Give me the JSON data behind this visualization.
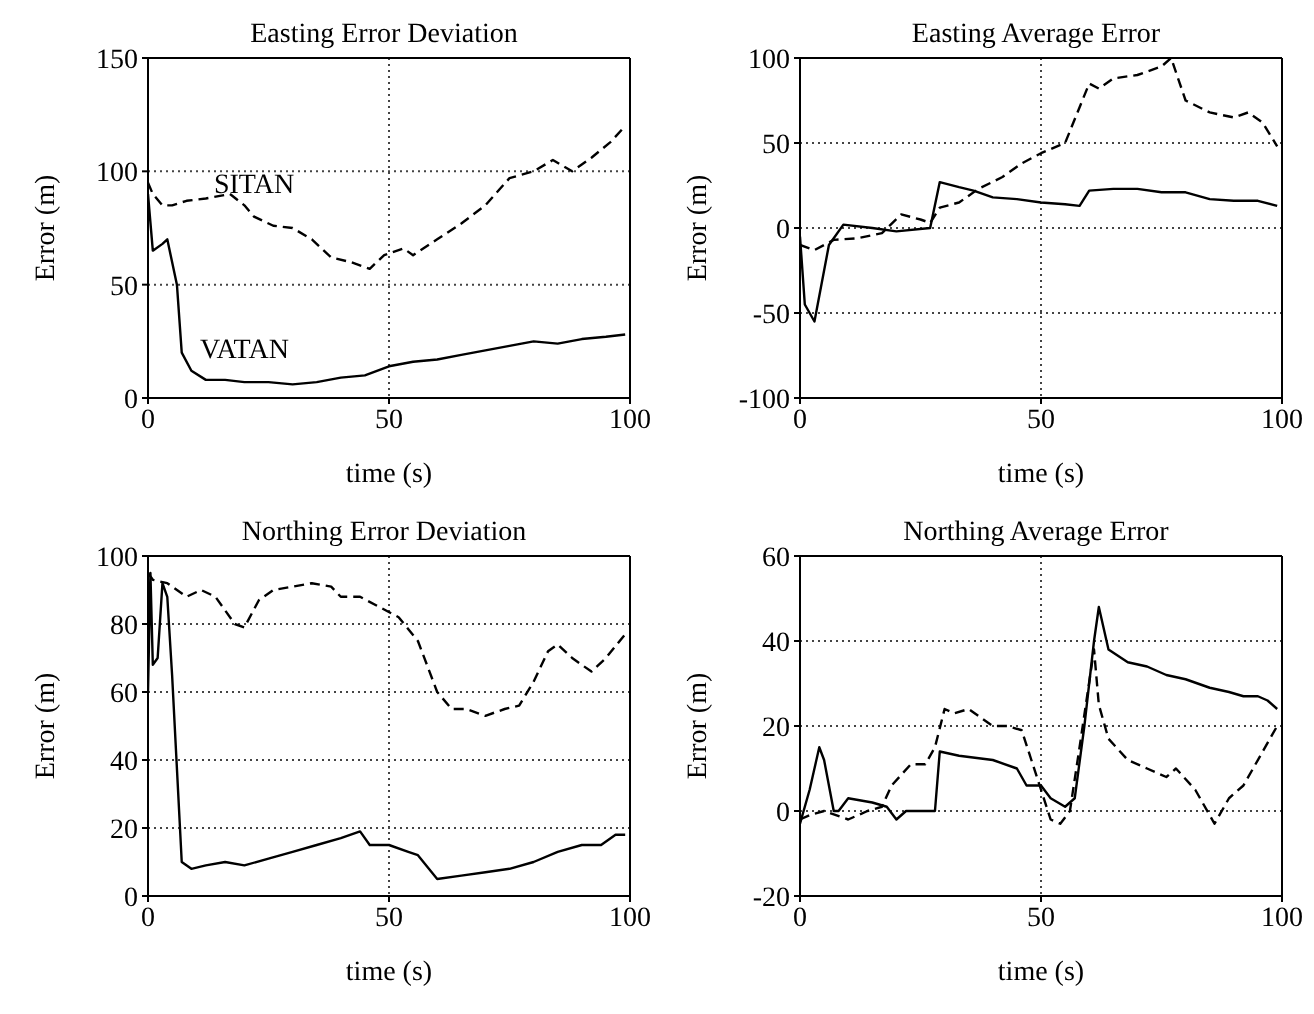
{
  "chart_data": [
    {
      "type": "line",
      "title": "Easting Error Deviation",
      "xlabel": "time (s)",
      "ylabel": "Error (m)",
      "xlim": [
        0,
        100
      ],
      "xticks": [
        0,
        50,
        100
      ],
      "ylim": [
        0,
        150
      ],
      "yticks": [
        0,
        50,
        100,
        150
      ],
      "grid": true,
      "legend": false,
      "marker": "none",
      "series": [
        {
          "name": "SITAN",
          "color": "#000000",
          "line_style": "dashed",
          "x": [
            0,
            1,
            3,
            5,
            8,
            12,
            17,
            20,
            22,
            26,
            30,
            34,
            38,
            42,
            46,
            49,
            53,
            55,
            60,
            65,
            70,
            75,
            80,
            84,
            88,
            92,
            96,
            99
          ],
          "values": [
            95,
            90,
            85,
            85,
            87,
            88,
            90,
            85,
            80,
            76,
            75,
            70,
            62,
            60,
            57,
            63,
            66,
            63,
            70,
            77,
            85,
            97,
            100,
            105,
            100,
            106,
            113,
            120
          ]
        },
        {
          "name": "VATAN",
          "color": "#000000",
          "line_style": "solid",
          "x": [
            0,
            1,
            3,
            4,
            6,
            7,
            9,
            12,
            16,
            20,
            25,
            30,
            35,
            40,
            45,
            50,
            55,
            60,
            65,
            70,
            75,
            80,
            85,
            90,
            95,
            99
          ],
          "values": [
            90,
            65,
            68,
            70,
            50,
            20,
            12,
            8,
            8,
            7,
            7,
            6,
            7,
            9,
            10,
            14,
            16,
            17,
            19,
            21,
            23,
            25,
            24,
            26,
            27,
            28
          ]
        }
      ]
    },
    {
      "type": "line",
      "title": "Easting Average Error",
      "xlabel": "time (s)",
      "ylabel": "Error (m)",
      "xlim": [
        0,
        100
      ],
      "xticks": [
        0,
        50,
        100
      ],
      "ylim": [
        -100,
        100
      ],
      "yticks": [
        -100,
        -50,
        0,
        50,
        100
      ],
      "grid": true,
      "legend": false,
      "marker": "none",
      "series": [
        {
          "color": "#000000",
          "line_style": "dashed",
          "x": [
            0,
            3,
            7,
            12,
            17,
            21,
            25,
            27,
            29,
            33,
            37,
            42,
            46,
            50,
            55,
            60,
            62,
            65,
            70,
            75,
            77,
            80,
            85,
            90,
            93,
            96,
            99
          ],
          "values": [
            -10,
            -13,
            -7,
            -6,
            -3,
            8,
            5,
            3,
            12,
            15,
            23,
            30,
            38,
            44,
            50,
            85,
            82,
            88,
            90,
            95,
            100,
            75,
            68,
            65,
            68,
            62,
            48
          ]
        },
        {
          "color": "#000000",
          "line_style": "solid",
          "x": [
            0,
            1,
            3,
            6,
            9,
            15,
            20,
            27,
            29,
            33,
            36,
            40,
            45,
            50,
            55,
            58,
            60,
            65,
            70,
            75,
            80,
            85,
            90,
            95,
            99
          ],
          "values": [
            -5,
            -45,
            -55,
            -10,
            2,
            0,
            -2,
            0,
            27,
            24,
            22,
            18,
            17,
            15,
            14,
            13,
            22,
            23,
            23,
            21,
            21,
            17,
            16,
            16,
            13
          ]
        }
      ]
    },
    {
      "type": "line",
      "title": "Northing Error Deviation",
      "xlabel": "time (s)",
      "ylabel": "Error (m)",
      "xlim": [
        0,
        100
      ],
      "xticks": [
        0,
        50,
        100
      ],
      "ylim": [
        0,
        100
      ],
      "yticks": [
        0,
        20,
        40,
        60,
        80,
        100
      ],
      "grid": true,
      "legend": false,
      "marker": "none",
      "series": [
        {
          "color": "#000000",
          "line_style": "dashed",
          "x": [
            0,
            1,
            4,
            8,
            11,
            14,
            18,
            20,
            23,
            26,
            30,
            34,
            38,
            40,
            44,
            48,
            52,
            56,
            60,
            63,
            66,
            70,
            74,
            77,
            80,
            83,
            85,
            88,
            92,
            95,
            99
          ],
          "values": [
            95,
            93,
            92,
            88,
            90,
            88,
            80,
            79,
            87,
            90,
            91,
            92,
            91,
            88,
            88,
            85,
            82,
            75,
            60,
            55,
            55,
            53,
            55,
            56,
            63,
            72,
            74,
            70,
            66,
            70,
            77
          ]
        },
        {
          "color": "#000000",
          "line_style": "solid",
          "x": [
            0,
            0.5,
            1,
            2,
            3,
            4,
            5,
            7,
            9,
            12,
            16,
            20,
            25,
            30,
            35,
            40,
            44,
            46,
            50,
            54,
            56,
            60,
            65,
            70,
            75,
            80,
            85,
            90,
            94,
            97,
            99
          ],
          "values": [
            60,
            95,
            68,
            70,
            92,
            88,
            65,
            10,
            8,
            9,
            10,
            9,
            11,
            13,
            15,
            17,
            19,
            15,
            15,
            13,
            12,
            5,
            6,
            7,
            8,
            10,
            13,
            15,
            15,
            18,
            18
          ]
        }
      ]
    },
    {
      "type": "line",
      "title": "Northing Average Error",
      "xlabel": "time (s)",
      "ylabel": "Error (m)",
      "xlim": [
        0,
        100
      ],
      "xticks": [
        0,
        50,
        100
      ],
      "ylim": [
        -20,
        60
      ],
      "yticks": [
        -20,
        0,
        20,
        40,
        60
      ],
      "grid": true,
      "legend": false,
      "marker": "none",
      "series": [
        {
          "color": "#000000",
          "line_style": "dashed",
          "x": [
            0,
            2,
            5,
            10,
            14,
            17,
            19,
            23,
            26,
            28,
            30,
            32,
            35,
            40,
            43,
            46,
            48,
            50,
            52,
            54,
            56,
            58,
            61,
            62,
            64,
            68,
            72,
            76,
            78,
            82,
            86,
            89,
            92,
            96,
            99
          ],
          "values": [
            -2,
            -1,
            0,
            -2,
            0,
            1,
            6,
            11,
            11,
            15,
            24,
            23,
            24,
            20,
            20,
            19,
            12,
            5,
            -2,
            -3,
            0,
            15,
            38,
            25,
            17,
            12,
            10,
            8,
            10,
            5,
            -3,
            3,
            6,
            14,
            20
          ]
        },
        {
          "color": "#000000",
          "line_style": "solid",
          "x": [
            0,
            2,
            4,
            5,
            7,
            8,
            10,
            15,
            18,
            20,
            22,
            28,
            29,
            33,
            40,
            45,
            47,
            50,
            52,
            55,
            57,
            59,
            61,
            62,
            64,
            68,
            72,
            76,
            80,
            85,
            89,
            92,
            95,
            97,
            99
          ],
          "values": [
            -3,
            5,
            15,
            12,
            0,
            0,
            3,
            2,
            1,
            -2,
            0,
            0,
            14,
            13,
            12,
            10,
            6,
            6,
            3,
            1,
            3,
            20,
            40,
            48,
            38,
            35,
            34,
            32,
            31,
            29,
            28,
            27,
            27,
            26,
            24
          ]
        }
      ]
    }
  ]
}
